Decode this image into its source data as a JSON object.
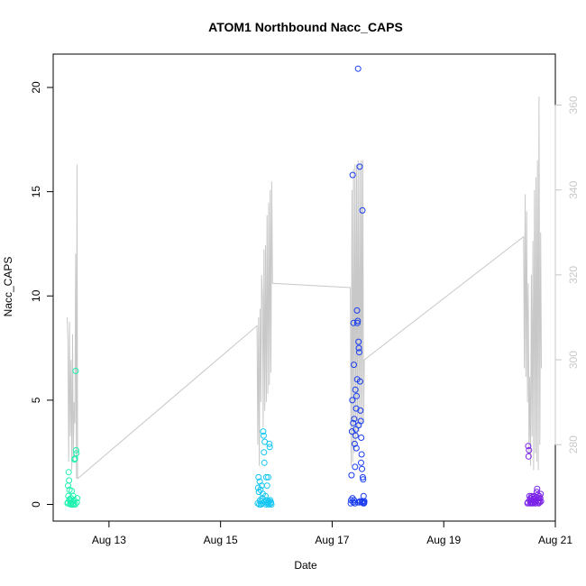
{
  "chart_data": {
    "type": "scatter",
    "title": "ATOM1 Northbound Nacc_CAPS",
    "xlabel": "Date",
    "ylabel": "Nacc_CAPS",
    "x_ticks": [
      {
        "date": "2021-08-13",
        "label": "Aug 13"
      },
      {
        "date": "2021-08-15",
        "label": "Aug 15"
      },
      {
        "date": "2021-08-17",
        "label": "Aug 17"
      },
      {
        "date": "2021-08-19",
        "label": "Aug 19"
      },
      {
        "date": "2021-08-21",
        "label": "Aug 21"
      }
    ],
    "xlim": [
      "2021-08-12T00:00",
      "2021-08-21T00:00"
    ],
    "ylim": [
      -0.8,
      21.6
    ],
    "y_ticks": [
      0,
      5,
      10,
      15,
      20
    ],
    "y2lim": [
      262,
      372
    ],
    "y2_ticks": [
      280,
      300,
      320,
      340,
      360
    ],
    "grid": false,
    "colors": {
      "axes": "#000000",
      "secondary_line": "#c8c8c8",
      "secondary_axis": "#c8c8c8",
      "day1": "#1ef2b0",
      "day2": "#13c6f2",
      "day3": "#1a3cf0",
      "day4": "#7a22e8"
    },
    "series": [
      {
        "color": "#1ef2b0",
        "points": [
          [
            "2021-08-12T06:10",
            0.05
          ],
          [
            "2021-08-12T06:20",
            0.1
          ],
          [
            "2021-08-12T06:30",
            0.4
          ],
          [
            "2021-08-12T06:40",
            1.55
          ],
          [
            "2021-08-12T06:50",
            1.15
          ],
          [
            "2021-08-12T07:00",
            0.7
          ],
          [
            "2021-08-12T07:10",
            0.2
          ],
          [
            "2021-08-12T07:20",
            0.05
          ],
          [
            "2021-08-12T07:30",
            0.0
          ],
          [
            "2021-08-12T07:40",
            0.3
          ],
          [
            "2021-08-12T07:50",
            0.1
          ],
          [
            "2021-08-12T08:00",
            0.65
          ],
          [
            "2021-08-12T08:10",
            0.0
          ],
          [
            "2021-08-12T08:20",
            0.15
          ],
          [
            "2021-08-12T08:30",
            0.05
          ],
          [
            "2021-08-12T08:40",
            0.4
          ],
          [
            "2021-08-12T08:50",
            0.0
          ],
          [
            "2021-08-12T09:00",
            0.2
          ],
          [
            "2021-08-12T09:10",
            2.15
          ],
          [
            "2021-08-12T09:20",
            2.2
          ],
          [
            "2021-08-12T09:30",
            0.0
          ],
          [
            "2021-08-12T09:40",
            6.4
          ],
          [
            "2021-08-12T09:50",
            2.6
          ],
          [
            "2021-08-12T10:00",
            2.45
          ],
          [
            "2021-08-12T10:10",
            0.1
          ],
          [
            "2021-08-12T10:20",
            0.3
          ],
          [
            "2021-08-12T06:25",
            0.9
          ],
          [
            "2021-08-12T07:05",
            0.25
          ]
        ]
      },
      {
        "color": "#13c6f2",
        "points": [
          [
            "2021-08-15T16:00",
            0.05
          ],
          [
            "2021-08-15T16:10",
            0.8
          ],
          [
            "2021-08-15T16:20",
            1.3
          ],
          [
            "2021-08-15T16:30",
            0.6
          ],
          [
            "2021-08-15T16:40",
            0.0
          ],
          [
            "2021-08-15T16:50",
            1.1
          ],
          [
            "2021-08-15T17:00",
            0.2
          ],
          [
            "2021-08-15T17:10",
            0.7
          ],
          [
            "2021-08-15T17:20",
            0.0
          ],
          [
            "2021-08-15T17:30",
            0.15
          ],
          [
            "2021-08-15T17:40",
            0.9
          ],
          [
            "2021-08-15T17:50",
            0.05
          ],
          [
            "2021-08-15T18:00",
            0.3
          ],
          [
            "2021-08-15T18:10",
            0.5
          ],
          [
            "2021-08-15T18:20",
            3.5
          ],
          [
            "2021-08-15T18:30",
            3.3
          ],
          [
            "2021-08-15T18:40",
            2.5
          ],
          [
            "2021-08-15T18:50",
            2.0
          ],
          [
            "2021-08-15T19:00",
            3.0
          ],
          [
            "2021-08-15T19:10",
            0.1
          ],
          [
            "2021-08-15T19:20",
            0.4
          ],
          [
            "2021-08-15T19:30",
            0.0
          ],
          [
            "2021-08-15T19:40",
            1.3
          ],
          [
            "2021-08-15T19:50",
            0.2
          ],
          [
            "2021-08-15T20:00",
            0.9
          ],
          [
            "2021-08-15T20:10",
            0.05
          ],
          [
            "2021-08-15T20:20",
            0.1
          ],
          [
            "2021-08-15T20:30",
            1.3
          ],
          [
            "2021-08-15T20:40",
            0.0
          ],
          [
            "2021-08-15T20:50",
            0.15
          ],
          [
            "2021-08-15T21:00",
            2.9
          ],
          [
            "2021-08-15T21:10",
            2.75
          ],
          [
            "2021-08-15T21:20",
            0.2
          ],
          [
            "2021-08-15T21:30",
            0.05
          ],
          [
            "2021-08-15T21:40",
            0.1
          ],
          [
            "2021-08-15T21:50",
            0.0
          ]
        ]
      },
      {
        "color": "#1a3cf0",
        "points": [
          [
            "2021-08-17T08:00",
            0.05
          ],
          [
            "2021-08-17T08:10",
            0.2
          ],
          [
            "2021-08-17T08:20",
            1.4
          ],
          [
            "2021-08-17T08:30",
            3.5
          ],
          [
            "2021-08-17T08:40",
            5.0
          ],
          [
            "2021-08-17T08:50",
            15.8
          ],
          [
            "2021-08-17T09:00",
            3.9
          ],
          [
            "2021-08-17T09:10",
            8.7
          ],
          [
            "2021-08-17T09:20",
            6.7
          ],
          [
            "2021-08-17T09:30",
            4.1
          ],
          [
            "2021-08-17T09:40",
            2.9
          ],
          [
            "2021-08-17T09:50",
            1.8
          ],
          [
            "2021-08-17T10:00",
            5.5
          ],
          [
            "2021-08-17T10:10",
            3.6
          ],
          [
            "2021-08-17T10:20",
            4.6
          ],
          [
            "2021-08-17T10:30",
            5.2
          ],
          [
            "2021-08-17T10:40",
            9.3
          ],
          [
            "2021-08-17T10:50",
            8.7
          ],
          [
            "2021-08-17T11:00",
            8.8
          ],
          [
            "2021-08-17T11:10",
            20.9
          ],
          [
            "2021-08-17T11:20",
            7.8
          ],
          [
            "2021-08-17T11:30",
            7.5
          ],
          [
            "2021-08-17T11:40",
            7.3
          ],
          [
            "2021-08-17T11:50",
            16.2
          ],
          [
            "2021-08-17T12:00",
            5.9
          ],
          [
            "2021-08-17T12:10",
            4.5
          ],
          [
            "2021-08-17T12:20",
            4.0
          ],
          [
            "2021-08-17T12:30",
            3.2
          ],
          [
            "2021-08-17T12:40",
            2.4
          ],
          [
            "2021-08-17T12:50",
            1.7
          ],
          [
            "2021-08-17T13:00",
            14.1
          ],
          [
            "2021-08-17T13:10",
            1.3
          ],
          [
            "2021-08-17T13:20",
            1.2
          ],
          [
            "2021-08-17T13:30",
            0.4
          ],
          [
            "2021-08-17T13:40",
            0.05
          ],
          [
            "2021-08-17T13:50",
            0.15
          ],
          [
            "2021-08-17T08:45",
            0.3
          ],
          [
            "2021-08-17T09:05",
            0.1
          ],
          [
            "2021-08-17T09:25",
            0.2
          ],
          [
            "2021-08-17T09:45",
            0.05
          ],
          [
            "2021-08-17T10:05",
            3.3
          ],
          [
            "2021-08-17T10:25",
            2.7
          ],
          [
            "2021-08-17T10:45",
            6.0
          ],
          [
            "2021-08-17T11:05",
            0.1
          ],
          [
            "2021-08-17T11:25",
            3.8
          ],
          [
            "2021-08-17T11:45",
            0.1
          ],
          [
            "2021-08-17T12:05",
            0.15
          ],
          [
            "2021-08-17T12:25",
            2.0
          ],
          [
            "2021-08-17T12:45",
            0.1
          ],
          [
            "2021-08-17T13:05",
            0.15
          ],
          [
            "2021-08-17T13:25",
            0.05
          ],
          [
            "2021-08-17T13:45",
            0.1
          ]
        ]
      },
      {
        "color": "#7a22e8",
        "points": [
          [
            "2021-08-20T12:00",
            0.05
          ],
          [
            "2021-08-20T12:10",
            0.1
          ],
          [
            "2021-08-20T12:20",
            2.8
          ],
          [
            "2021-08-20T12:30",
            2.3
          ],
          [
            "2021-08-20T12:40",
            2.6
          ],
          [
            "2021-08-20T12:50",
            0.4
          ],
          [
            "2021-08-20T13:00",
            0.2
          ],
          [
            "2021-08-20T13:10",
            0.05
          ],
          [
            "2021-08-20T13:20",
            0.3
          ],
          [
            "2021-08-20T13:30",
            0.1
          ],
          [
            "2021-08-20T13:40",
            0.4
          ],
          [
            "2021-08-20T13:50",
            0.05
          ],
          [
            "2021-08-20T14:00",
            0.2
          ],
          [
            "2021-08-20T14:10",
            0.35
          ],
          [
            "2021-08-20T14:20",
            0.1
          ],
          [
            "2021-08-20T14:30",
            0.05
          ],
          [
            "2021-08-20T14:40",
            0.25
          ],
          [
            "2021-08-20T14:50",
            0.4
          ],
          [
            "2021-08-20T15:00",
            0.1
          ],
          [
            "2021-08-20T15:10",
            0.3
          ],
          [
            "2021-08-20T15:20",
            0.15
          ],
          [
            "2021-08-20T15:30",
            0.05
          ],
          [
            "2021-08-20T15:40",
            0.35
          ],
          [
            "2021-08-20T15:50",
            0.2
          ],
          [
            "2021-08-20T16:00",
            0.6
          ],
          [
            "2021-08-20T16:10",
            0.75
          ],
          [
            "2021-08-20T16:20",
            0.45
          ],
          [
            "2021-08-20T16:30",
            0.1
          ],
          [
            "2021-08-20T16:40",
            0.3
          ],
          [
            "2021-08-20T16:50",
            0.05
          ],
          [
            "2021-08-20T17:00",
            0.2
          ],
          [
            "2021-08-20T17:10",
            0.4
          ],
          [
            "2021-08-20T17:20",
            0.1
          ],
          [
            "2021-08-20T17:30",
            0.3
          ],
          [
            "2021-08-20T17:40",
            0.5
          ],
          [
            "2021-08-20T17:50",
            0.15
          ]
        ]
      }
    ],
    "secondary_line": {
      "color": "#c8c8c8",
      "points": [
        [
          "2021-08-12T06:00",
          310
        ],
        [
          "2021-08-12T06:20",
          305
        ],
        [
          "2021-08-12T06:40",
          276
        ],
        [
          "2021-08-12T07:00",
          309
        ],
        [
          "2021-08-12T07:20",
          282
        ],
        [
          "2021-08-12T07:40",
          300
        ],
        [
          "2021-08-12T08:00",
          274
        ],
        [
          "2021-08-12T08:20",
          306
        ],
        [
          "2021-08-12T08:40",
          276
        ],
        [
          "2021-08-12T09:00",
          290
        ],
        [
          "2021-08-12T09:20",
          285
        ],
        [
          "2021-08-12T09:40",
          325
        ],
        [
          "2021-08-12T10:00",
          272
        ],
        [
          "2021-08-12T10:15",
          346
        ],
        [
          "2021-08-12T10:30",
          272
        ],
        [
          "2021-08-15T15:40",
          308
        ],
        [
          "2021-08-15T16:00",
          280
        ],
        [
          "2021-08-15T16:20",
          310
        ],
        [
          "2021-08-15T16:40",
          275
        ],
        [
          "2021-08-15T17:00",
          312
        ],
        [
          "2021-08-15T17:20",
          290
        ],
        [
          "2021-08-15T17:40",
          320
        ],
        [
          "2021-08-15T18:00",
          315
        ],
        [
          "2021-08-15T18:20",
          284
        ],
        [
          "2021-08-15T18:40",
          326
        ],
        [
          "2021-08-15T19:00",
          288
        ],
        [
          "2021-08-15T19:20",
          327
        ],
        [
          "2021-08-15T19:40",
          290
        ],
        [
          "2021-08-15T20:00",
          334
        ],
        [
          "2021-08-15T20:20",
          292
        ],
        [
          "2021-08-15T20:40",
          337
        ],
        [
          "2021-08-15T21:00",
          294
        ],
        [
          "2021-08-15T21:20",
          340
        ],
        [
          "2021-08-15T21:40",
          297
        ],
        [
          "2021-08-15T22:00",
          342
        ],
        [
          "2021-08-15T22:20",
          318
        ],
        [
          "2021-08-17T07:50",
          317
        ],
        [
          "2021-08-17T08:10",
          275
        ],
        [
          "2021-08-17T08:30",
          340
        ],
        [
          "2021-08-17T08:50",
          276
        ],
        [
          "2021-08-17T09:10",
          345
        ],
        [
          "2021-08-17T09:30",
          278
        ],
        [
          "2021-08-17T09:50",
          346
        ],
        [
          "2021-08-17T10:10",
          280
        ],
        [
          "2021-08-17T10:30",
          346
        ],
        [
          "2021-08-17T10:50",
          282
        ],
        [
          "2021-08-17T11:10",
          347
        ],
        [
          "2021-08-17T11:30",
          283
        ],
        [
          "2021-08-17T11:50",
          346
        ],
        [
          "2021-08-17T12:10",
          284
        ],
        [
          "2021-08-17T12:30",
          347
        ],
        [
          "2021-08-17T12:50",
          285
        ],
        [
          "2021-08-17T13:10",
          347
        ],
        [
          "2021-08-17T13:30",
          285
        ],
        [
          "2021-08-17T13:50",
          300
        ],
        [
          "2021-08-20T10:20",
          329
        ],
        [
          "2021-08-20T10:40",
          298
        ],
        [
          "2021-08-20T11:00",
          339
        ],
        [
          "2021-08-20T11:20",
          296
        ],
        [
          "2021-08-20T11:40",
          335
        ],
        [
          "2021-08-20T12:00",
          290
        ],
        [
          "2021-08-20T12:20",
          318
        ],
        [
          "2021-08-20T12:40",
          278
        ],
        [
          "2021-08-20T13:00",
          296
        ],
        [
          "2021-08-20T13:20",
          275
        ],
        [
          "2021-08-20T13:40",
          320
        ],
        [
          "2021-08-20T14:00",
          282
        ],
        [
          "2021-08-20T14:20",
          328
        ],
        [
          "2021-08-20T14:40",
          274
        ],
        [
          "2021-08-20T15:00",
          340
        ],
        [
          "2021-08-20T15:20",
          278
        ],
        [
          "2021-08-20T15:40",
          343
        ],
        [
          "2021-08-20T16:00",
          276
        ],
        [
          "2021-08-20T16:20",
          347
        ],
        [
          "2021-08-20T16:40",
          274
        ],
        [
          "2021-08-20T17:00",
          362
        ],
        [
          "2021-08-20T17:20",
          280
        ],
        [
          "2021-08-20T17:40",
          330
        ],
        [
          "2021-08-20T18:00",
          298
        ]
      ]
    }
  }
}
